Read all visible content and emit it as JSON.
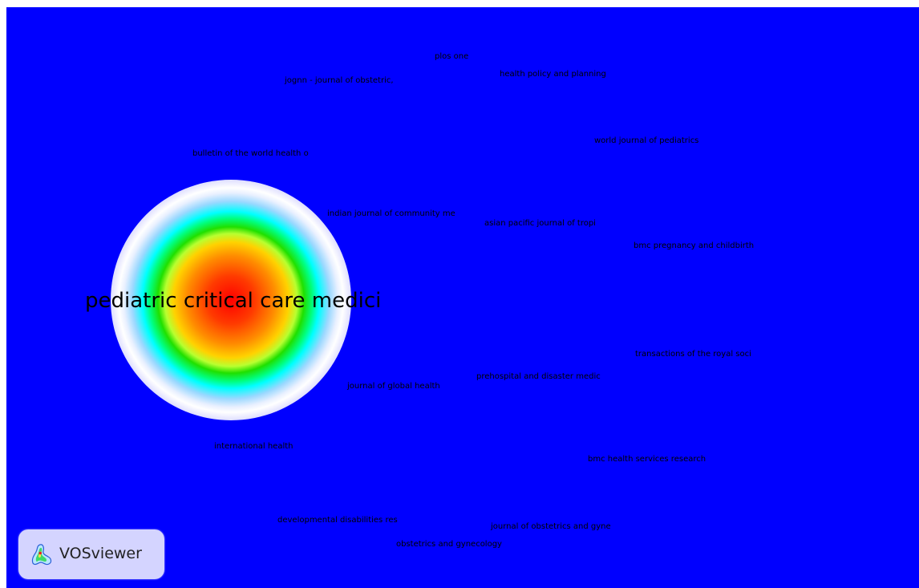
{
  "view": {
    "background_color": "#0000ff",
    "labels": [
      {
        "id": "plos-one",
        "text": "plos one"
      },
      {
        "id": "health-policy",
        "text": "health policy and planning"
      },
      {
        "id": "jognn",
        "text": "jognn - journal of obstetric,"
      },
      {
        "id": "world-journal-pediatrics",
        "text": "world journal of pediatrics"
      },
      {
        "id": "bulletin-who",
        "text": "bulletin of the world health o"
      },
      {
        "id": "indian-journal-community",
        "text": "indian journal of community me"
      },
      {
        "id": "asian-pacific-tropical",
        "text": "asian pacific journal of tropi"
      },
      {
        "id": "bmc-pregnancy",
        "text": "bmc pregnancy and childbirth"
      },
      {
        "id": "pediatric-critical-care",
        "text": "pediatric critical care medici"
      },
      {
        "id": "transactions-royal-soc",
        "text": "transactions of the royal soci"
      },
      {
        "id": "prehospital-disaster",
        "text": "prehospital and disaster medic"
      },
      {
        "id": "journal-global-health",
        "text": "journal of global health"
      },
      {
        "id": "international-health",
        "text": "international health"
      },
      {
        "id": "bmc-health-services",
        "text": "bmc health services research"
      },
      {
        "id": "developmental-disabilities",
        "text": "developmental disabilities res"
      },
      {
        "id": "journal-obstetrics-gyne",
        "text": "journal of obstetrics and gyne"
      },
      {
        "id": "obstetrics-gynecology",
        "text": "obstetrics and gynecology"
      }
    ]
  },
  "badge": {
    "text": "VOSviewer",
    "icon": "vosviewer-logo-icon"
  }
}
